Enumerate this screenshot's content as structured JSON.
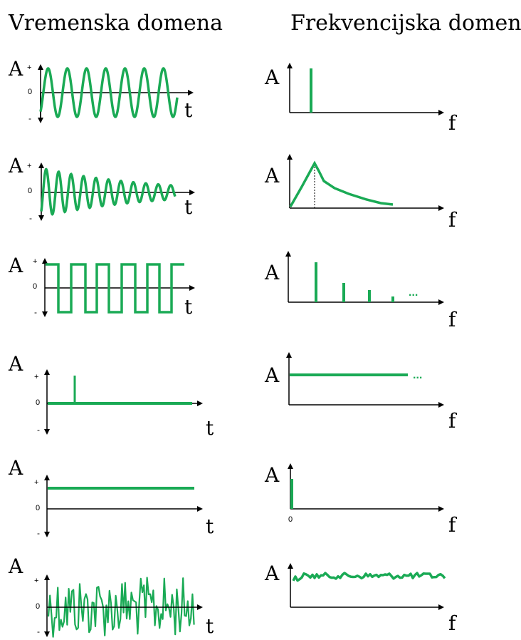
{
  "headers": {
    "time_domain": "Vremenska domena",
    "frequency_domain": "Frekvencijska domena"
  },
  "axis_labels": {
    "amplitude": "A",
    "time": "t",
    "frequency": "f",
    "plus": "+",
    "minus": "-",
    "zero": "0"
  },
  "colors": {
    "signal": "#1aaa55",
    "axis": "#000000"
  },
  "rows": [
    {
      "time_signal": "sine",
      "frequency_spectrum": "single line"
    },
    {
      "time_signal": "damped sine",
      "frequency_spectrum": "resonance peak"
    },
    {
      "time_signal": "square wave",
      "frequency_spectrum": "harmonic lines",
      "ellipsis": "..."
    },
    {
      "time_signal": "impulse",
      "frequency_spectrum": "flat",
      "ellipsis": "..."
    },
    {
      "time_signal": "constant",
      "frequency_spectrum": "line at zero"
    },
    {
      "time_signal": "noise",
      "frequency_spectrum": "noisy flat"
    }
  ]
}
